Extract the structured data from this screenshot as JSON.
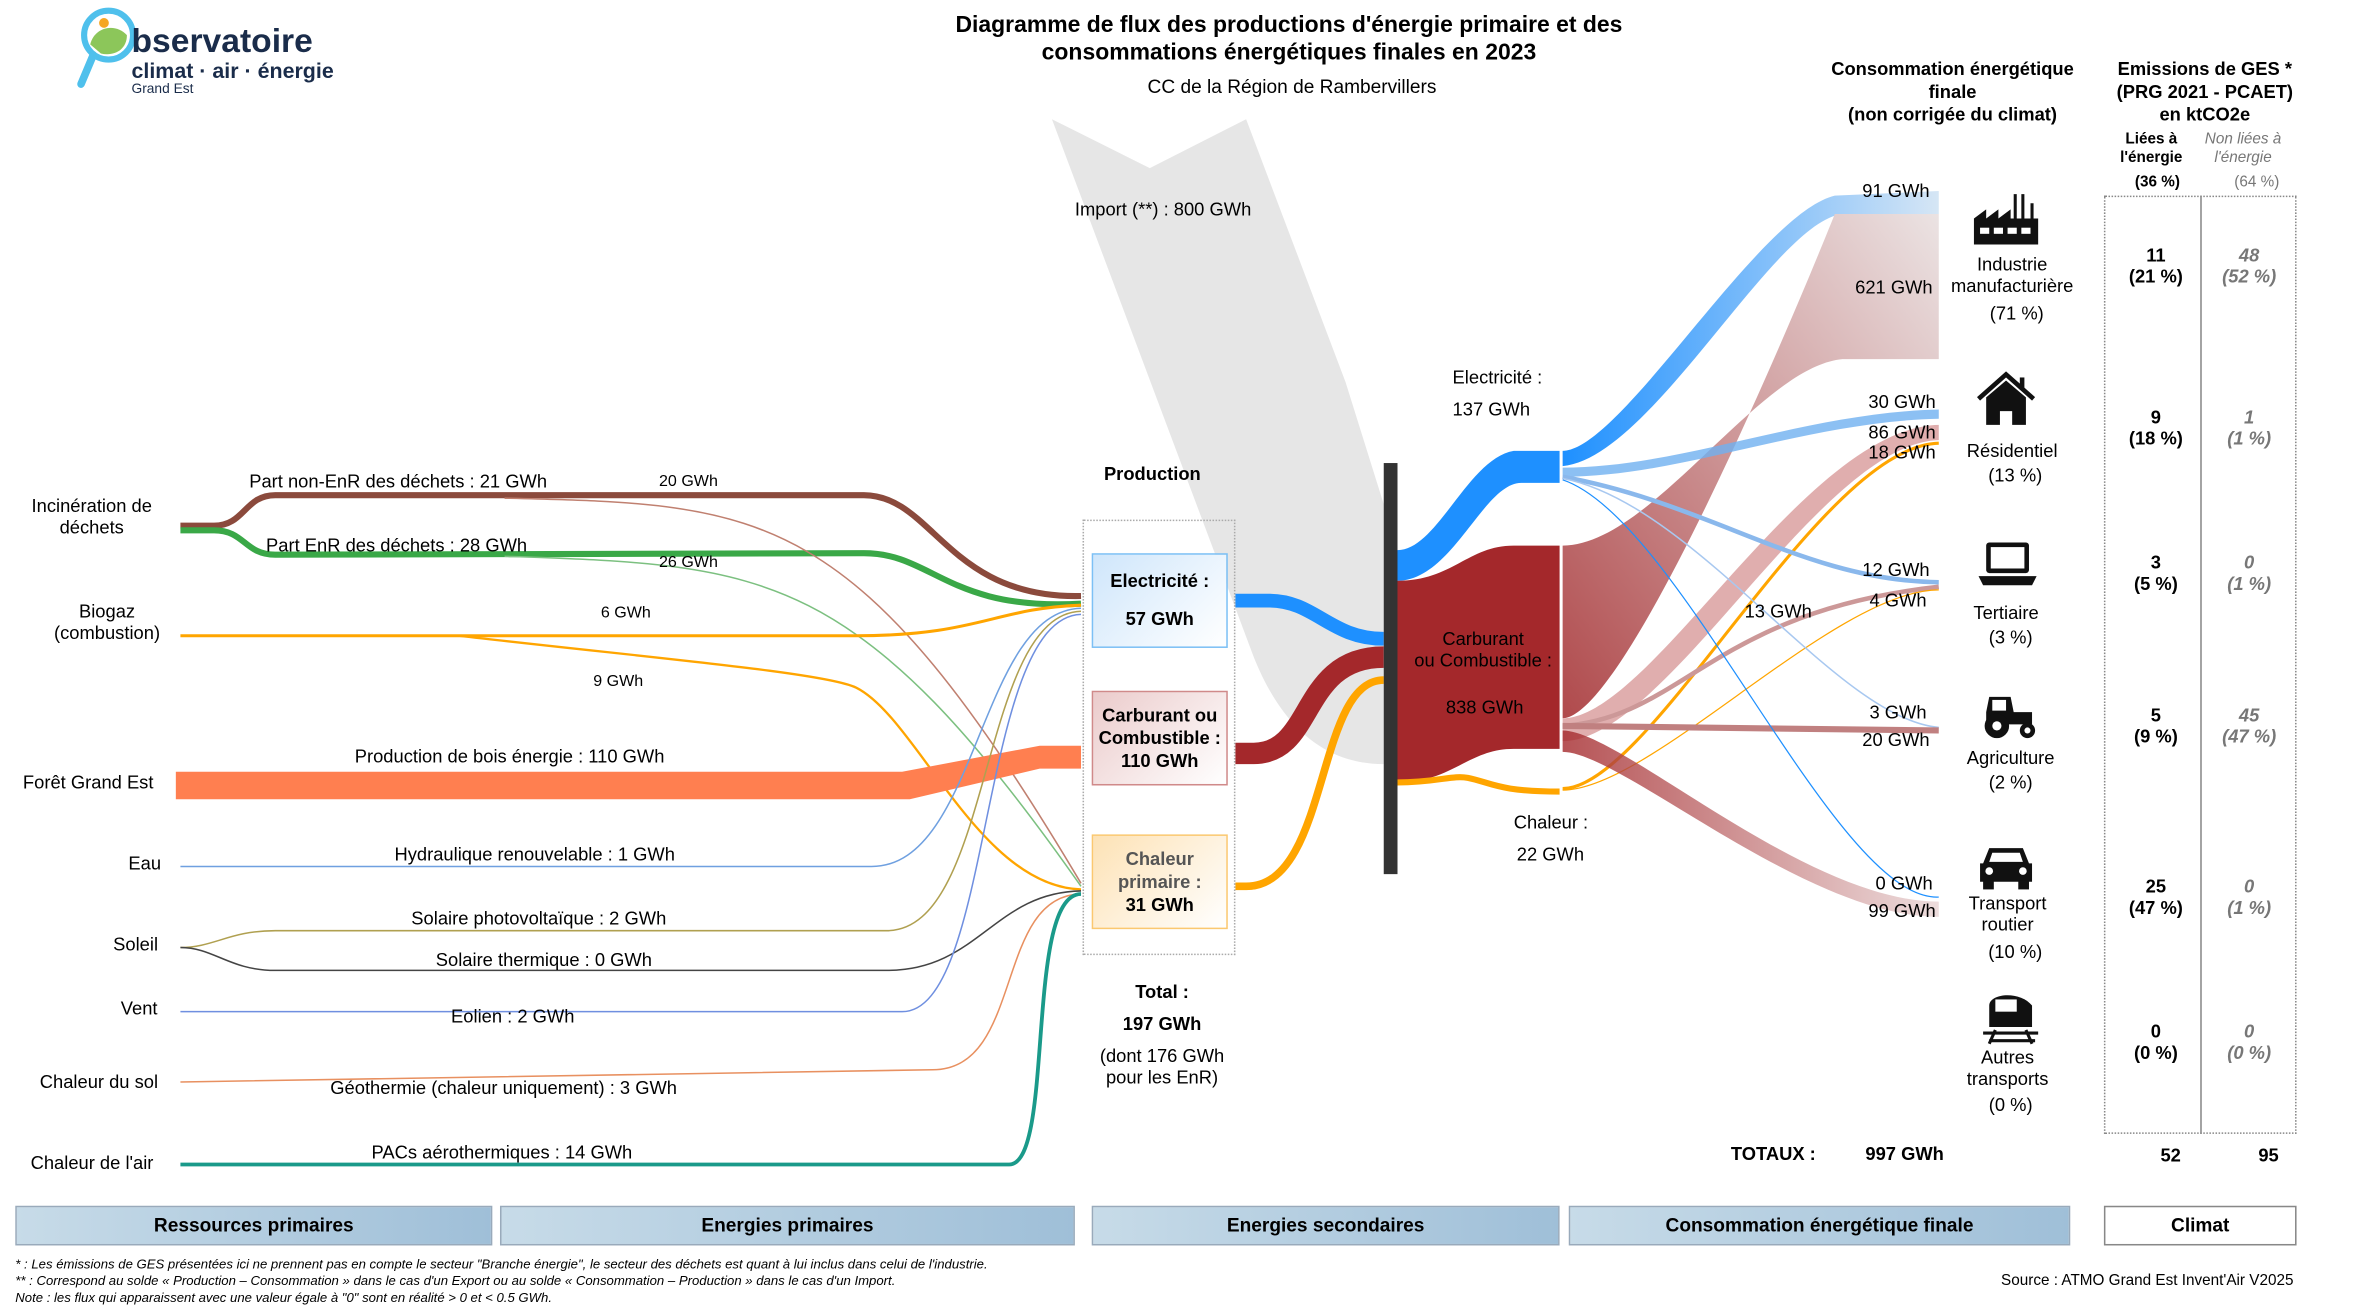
{
  "header": {
    "title_line1": "Diagramme de flux des productions d'énergie primaire et des",
    "title_line2": "consommations énergétiques finales en 2023",
    "subtitle": "CC de la Région de Rambervillers"
  },
  "logo": {
    "text1": "bservatoire",
    "text2": "climat · air · énergie",
    "text3": "Grand Est"
  },
  "resources": [
    {
      "label1": "Incinération de",
      "label2": "déchets"
    },
    {
      "label1": "Biogaz",
      "label2": "(combustion)"
    },
    {
      "label1": "Forêt Grand Est"
    },
    {
      "label1": "Eau"
    },
    {
      "label1": "Soleil"
    },
    {
      "label1": "Vent"
    },
    {
      "label1": "Chaleur du sol"
    },
    {
      "label1": "Chaleur de l'air"
    }
  ],
  "flows": {
    "non_enr": "Part non-EnR des déchets :  21 GWh",
    "non_enr_small": "20 GWh",
    "enr": "Part EnR des déchets :  28 GWh",
    "enr_small": "26 GWh",
    "biogaz_a": "6 GWh",
    "biogaz_b": "9 GWh",
    "bois": "Production de bois énergie :  110 GWh",
    "hydro": "Hydraulique renouvelable :  1 GWh",
    "pv": "Solaire photovoltaïque :  2 GWh",
    "thermique": "Solaire thermique :  0 GWh",
    "eolien": "Eolien :  2 GWh",
    "geo": "Géothermie (chaleur uniquement) :  3 GWh",
    "pac": "PACs aérothermiques :  14 GWh",
    "import": "Import (**) :  800 GWh"
  },
  "production": {
    "title": "Production",
    "elec_label": "Electricité :",
    "elec_value": "57 GWh",
    "carb_label1": "Carburant ou",
    "carb_label2": "Combustible :",
    "carb_value": "110 GWh",
    "chal_label1": "Chaleur",
    "chal_label2": "primaire :",
    "chal_value": "31 GWh",
    "total_label": "Total :",
    "total_value": "197 GWh",
    "total_note1": "(dont  176 GWh",
    "total_note2": "pour les EnR)"
  },
  "secondary": {
    "elec_label": "Electricité :",
    "elec_value": "137 GWh",
    "carb_label1": "Carburant",
    "carb_label2": "ou Combustible :",
    "carb_value": "838 GWh",
    "chal_label": "Chaleur :",
    "chal_value": "22 GWh",
    "agri_flow": "13 GWh"
  },
  "consumption": {
    "header1": "Consommation énergétique",
    "header2": "finale",
    "header3": "(non corrigée du climat)",
    "sectors": [
      {
        "name1": "Industrie",
        "name2": "manufacturière",
        "pct": "(71 %)",
        "values": [
          "91 GWh",
          "621 GWh"
        ],
        "ges_energy": "11",
        "ges_energy_pct": "(21 %)",
        "ges_other": "48",
        "ges_other_pct": "(52 %)"
      },
      {
        "name1": "Résidentiel",
        "name2": "",
        "pct": "(13 %)",
        "values": [
          "30 GWh",
          "86 GWh",
          "18 GWh"
        ],
        "ges_energy": "9",
        "ges_energy_pct": "(18 %)",
        "ges_other": "1",
        "ges_other_pct": "(1 %)"
      },
      {
        "name1": "Tertiaire",
        "name2": "",
        "pct": "(3 %)",
        "values": [
          "12 GWh",
          "4 GWh"
        ],
        "ges_energy": "3",
        "ges_energy_pct": "(5 %)",
        "ges_other": "0",
        "ges_other_pct": "(1 %)"
      },
      {
        "name1": "Agriculture",
        "name2": "",
        "pct": "(2 %)",
        "values": [
          "3 GWh",
          "20 GWh"
        ],
        "ges_energy": "5",
        "ges_energy_pct": "(9 %)",
        "ges_other": "45",
        "ges_other_pct": "(47 %)"
      },
      {
        "name1": "Transport",
        "name2": "routier",
        "pct": "(10 %)",
        "values": [
          "0 GWh",
          "99 GWh"
        ],
        "ges_energy": "25",
        "ges_energy_pct": "(47 %)",
        "ges_other": "0",
        "ges_other_pct": "(1 %)"
      },
      {
        "name1": "Autres",
        "name2": "transports",
        "pct": "(0 %)",
        "values": [],
        "ges_energy": "0",
        "ges_energy_pct": "(0 %)",
        "ges_other": "0",
        "ges_other_pct": "(0 %)"
      }
    ],
    "totals_label": "TOTAUX :",
    "total_value": "997 GWh"
  },
  "ges": {
    "header1": "Emissions de GES *",
    "header2": "(PRG 2021 - PCAET)",
    "header3": "en ktCO2e",
    "col1_1": "Liées à",
    "col1_2": "l'énergie",
    "col1_pct": "(36 %)",
    "col2_1": "Non liées à",
    "col2_2": "l'énergie",
    "col2_pct": "(64 %)",
    "total_energy": "52",
    "total_other": "95"
  },
  "footer": {
    "bars": [
      "Ressources primaires",
      "Energies primaires",
      "Energies secondaires",
      "Consommation énergétique finale",
      "Climat"
    ],
    "note1": "* : Les émissions de GES présentées ici ne prennent pas en compte le secteur \"Branche énergie\", le secteur des déchets est quant à lui inclus dans celui de l'industrie.",
    "note2": "** : Correspond au solde « Production – Consommation » dans le cas d'un Export ou au solde « Consommation – Production » dans le cas d'un Import.",
    "note3": "Note : les flux qui apparaissent avec une valeur égale à \"0\" sont en réalité > 0 et < 0.5 GWh.",
    "source": "Source : ATMO Grand Est Invent'Air V2025"
  },
  "colors": {
    "electricity": "#1e90ff",
    "fuel": "#a4282b",
    "heat": "#ffa500",
    "wood": "#ff7f50",
    "waste_non_enr": "#8b4a3c",
    "waste_enr": "#3aa847",
    "import": "#e6e6e6"
  }
}
